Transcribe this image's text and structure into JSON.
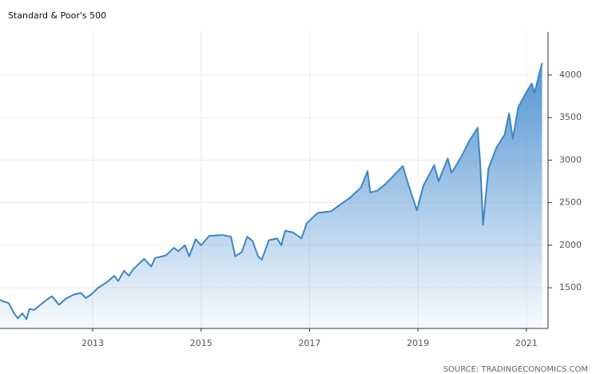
{
  "chart_data": {
    "type": "area",
    "title": "Standard & Poor's 500",
    "source": "SOURCE: TRADINGECONOMICS.COM",
    "color": "#3d86c6",
    "grid": true,
    "xlim": [
      2011.29,
      2021.4
    ],
    "xticks": [
      2013,
      2015,
      2017,
      2019,
      2021
    ],
    "ylim": [
      1022,
      4506
    ],
    "yticks": [
      1500,
      2000,
      2500,
      3000,
      3500,
      4000
    ],
    "x": [
      2011.29,
      2011.35,
      2011.45,
      2011.55,
      2011.62,
      2011.7,
      2011.78,
      2011.83,
      2011.92,
      2012.0,
      2012.15,
      2012.25,
      2012.38,
      2012.5,
      2012.65,
      2012.78,
      2012.87,
      2012.97,
      2013.1,
      2013.25,
      2013.4,
      2013.47,
      2013.58,
      2013.67,
      2013.75,
      2013.95,
      2014.08,
      2014.15,
      2014.35,
      2014.5,
      2014.58,
      2014.7,
      2014.78,
      2014.9,
      2015.0,
      2015.15,
      2015.4,
      2015.55,
      2015.63,
      2015.75,
      2015.85,
      2015.95,
      2016.05,
      2016.12,
      2016.25,
      2016.4,
      2016.48,
      2016.55,
      2016.7,
      2016.85,
      2016.95,
      2017.15,
      2017.4,
      2017.55,
      2017.75,
      2017.95,
      2018.07,
      2018.12,
      2018.25,
      2018.4,
      2018.6,
      2018.72,
      2018.83,
      2018.98,
      2019.1,
      2019.3,
      2019.38,
      2019.55,
      2019.62,
      2019.8,
      2019.95,
      2020.1,
      2020.15,
      2020.2,
      2020.3,
      2020.45,
      2020.6,
      2020.68,
      2020.75,
      2020.85,
      2021.0,
      2021.1,
      2021.15,
      2021.22,
      2021.29
    ],
    "values": [
      1360,
      1340,
      1320,
      1200,
      1140,
      1200,
      1130,
      1250,
      1240,
      1280,
      1360,
      1400,
      1300,
      1370,
      1420,
      1440,
      1380,
      1420,
      1500,
      1560,
      1640,
      1580,
      1700,
      1640,
      1720,
      1840,
      1750,
      1850,
      1880,
      1970,
      1930,
      2000,
      1870,
      2070,
      2000,
      2110,
      2120,
      2100,
      1870,
      1920,
      2100,
      2050,
      1870,
      1830,
      2060,
      2080,
      2000,
      2170,
      2150,
      2080,
      2260,
      2380,
      2400,
      2470,
      2560,
      2680,
      2870,
      2620,
      2640,
      2720,
      2850,
      2930,
      2700,
      2410,
      2700,
      2940,
      2750,
      3020,
      2850,
      3040,
      3230,
      3380,
      2950,
      2240,
      2900,
      3150,
      3300,
      3550,
      3250,
      3620,
      3800,
      3900,
      3790,
      3970,
      4140
    ]
  }
}
